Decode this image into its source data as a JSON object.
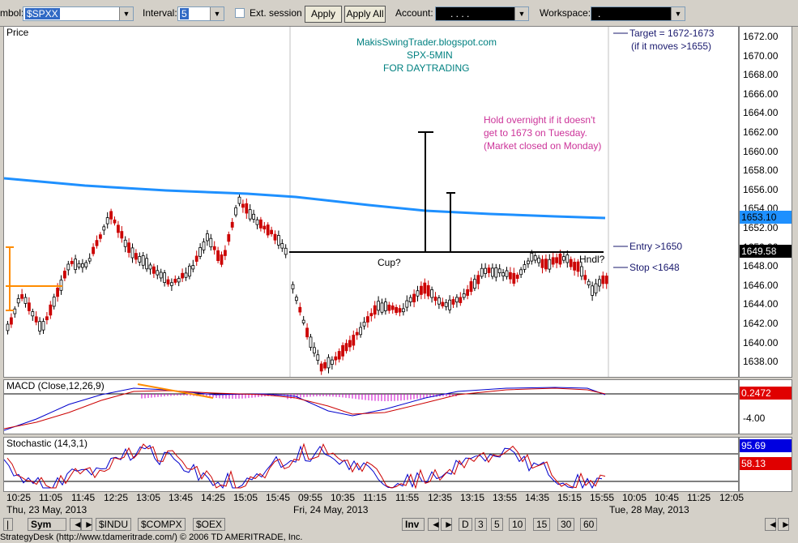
{
  "toolbar": {
    "symbol_label": "mbol:",
    "symbol_value": "$SPXX",
    "interval_label": "Interval:",
    "interval_value": "5",
    "ext_session_label": "Ext. session",
    "apply_label": "Apply",
    "apply_all_label": "Apply All",
    "account_label": "Account:",
    "account_value": ".   .   .   .",
    "workspace_label": "Workspace:",
    "workspace_value": "."
  },
  "price_pane": {
    "title": "Price",
    "watermark": [
      "MakisSwingTrader.blogspot.com",
      "SPX-5MIN",
      "FOR DAYTRADING"
    ],
    "note": [
      "Hold overnight if it doesn't",
      "get to 1673 on Tuesday.",
      "(Market closed on Monday)"
    ],
    "cup_label": "Cup?",
    "handle_label": "Hndl?",
    "target_label": "Target = 1672-1673",
    "target_sub": "(if it moves >1655)",
    "entry_label": "Entry >1650",
    "stop_label": "Stop <1648",
    "ticks": [
      "1672.00",
      "1670.00",
      "1668.00",
      "1666.00",
      "1664.00",
      "1662.00",
      "1660.00",
      "1658.00",
      "1656.00",
      "1654.00",
      "1652.00",
      "1650.00",
      "1648.00",
      "1646.00",
      "1644.00",
      "1642.00",
      "1640.00",
      "1638.00"
    ],
    "ma_tag": "1653.10",
    "last_tag": "1649.58",
    "colors": {
      "ma": "#1e90ff",
      "up": "#000000",
      "down": "#cc0000",
      "note": "#cc3399",
      "watermark": "#008080"
    }
  },
  "macd_pane": {
    "title": "MACD (Close,12,26,9)",
    "value_tag": "0.2472",
    "tick": "-4.00"
  },
  "stoch_pane": {
    "title": "Stochastic (14,3,1)",
    "blue_tag": "95.69",
    "red_tag": "58.13"
  },
  "time_axis": {
    "times": [
      "10:25",
      "11:05",
      "11:45",
      "12:25",
      "13:05",
      "13:45",
      "14:25",
      "15:05",
      "15:45",
      "09:55",
      "10:35",
      "11:15",
      "11:55",
      "12:35",
      "13:15",
      "13:55",
      "14:35",
      "15:15",
      "15:55",
      "10:05",
      "10:45",
      "11:25",
      "12:05"
    ],
    "dates": [
      "Thu, 23 May, 2013",
      "Fri, 24 May, 2013",
      "Tue, 28 May, 2013"
    ]
  },
  "tabs": [
    "Sym",
    "$INDU",
    "$COMPX",
    "$OEX",
    "Inv",
    "D",
    "3",
    "5",
    "10",
    "15",
    "30",
    "60"
  ],
  "status": "StrategyDesk (http://www.tdameritrade.com/) © 2006 TD AMERITRADE, Inc."
}
